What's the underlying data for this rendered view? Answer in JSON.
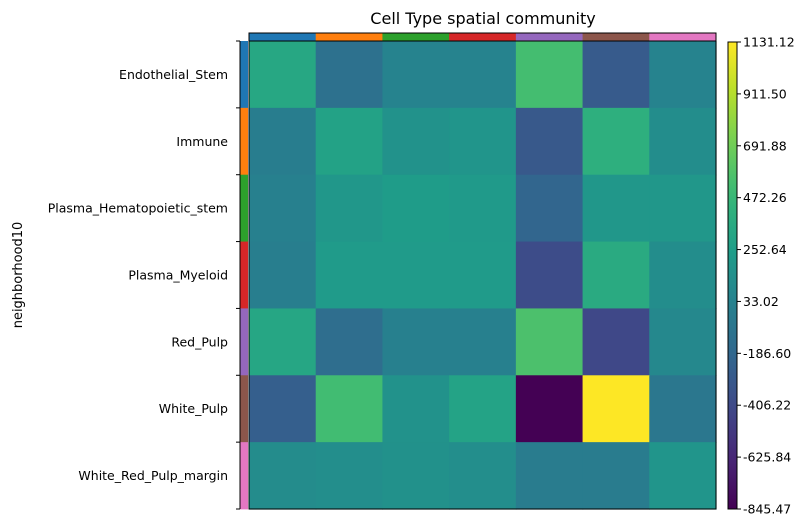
{
  "chart_data": {
    "type": "heatmap",
    "title": "Cell Type spatial community",
    "ylabel": "neighborhood10",
    "xlabel": "",
    "rows": [
      "Endothelial_Stem",
      "Immune",
      "Plasma_Hematopoietic_stem",
      "Plasma_Myeloid",
      "Red_Pulp",
      "White_Pulp",
      "White_Red_Pulp_margin"
    ],
    "row_colors": [
      "#1f77b4",
      "#ff7f0e",
      "#2ca02c",
      "#d62728",
      "#9467bd",
      "#8c564b",
      "#e377c2"
    ],
    "column_colors": [
      "#1f77b4",
      "#ff7f0e",
      "#2ca02c",
      "#d62728",
      "#9467bd",
      "#8c564b",
      "#e377c2"
    ],
    "values": [
      [
        330,
        -110,
        40,
        40,
        530,
        -280,
        40
      ],
      [
        -10,
        290,
        160,
        180,
        -300,
        400,
        120
      ],
      [
        20,
        200,
        240,
        220,
        -200,
        200,
        200
      ],
      [
        0,
        230,
        230,
        230,
        -390,
        360,
        120
      ],
      [
        320,
        -140,
        20,
        20,
        560,
        -420,
        80
      ],
      [
        -250,
        520,
        160,
        300,
        -845.47,
        1131.12,
        -60
      ],
      [
        110,
        130,
        150,
        130,
        -20,
        -20,
        180
      ]
    ],
    "colorbar": {
      "min": -845.47,
      "max": 1131.12,
      "tick_values": [
        -845.47,
        -625.84,
        -406.22,
        -186.6,
        33.02,
        252.64,
        472.26,
        691.88,
        911.5,
        1131.12
      ],
      "tick_labels": [
        "-845.47",
        "-625.84",
        "-406.22",
        "-186.60",
        "33.02",
        "252.64",
        "472.26",
        "691.88",
        "911.50",
        "1131.12"
      ],
      "colormap": "viridis"
    }
  }
}
